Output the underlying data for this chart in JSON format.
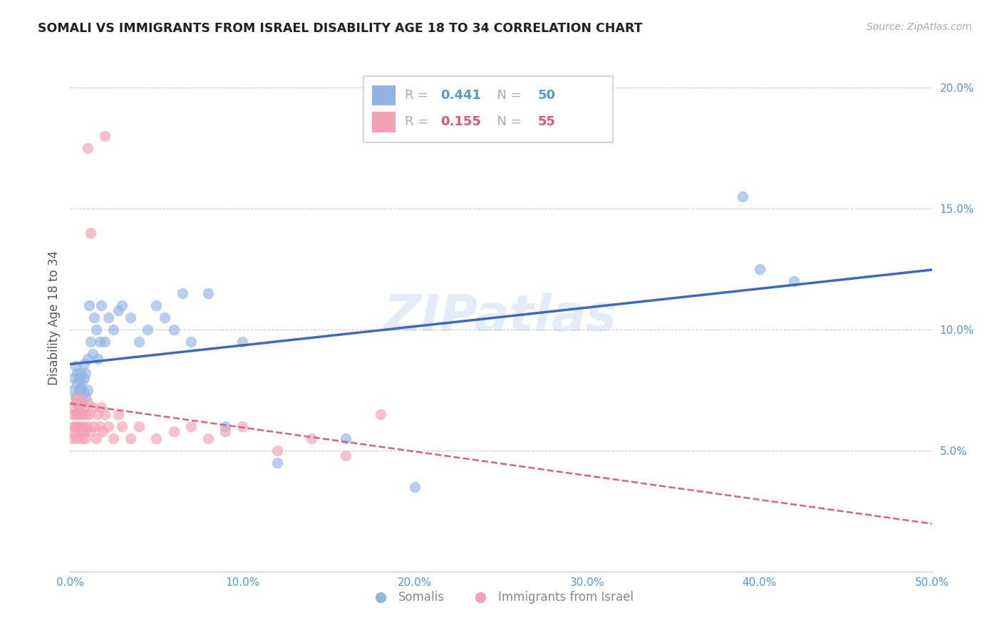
{
  "title": "SOMALI VS IMMIGRANTS FROM ISRAEL DISABILITY AGE 18 TO 34 CORRELATION CHART",
  "source": "Source: ZipAtlas.com",
  "ylabel": "Disability Age 18 to 34",
  "legend_label1": "Somalis",
  "legend_label2": "Immigrants from Israel",
  "R1": 0.441,
  "N1": 50,
  "R2": 0.155,
  "N2": 55,
  "color1": "#92b4e3",
  "color2": "#f4a0b5",
  "line_color1": "#3a6abf",
  "line_color2": "#d96080",
  "watermark": "ZIPatlas",
  "xlim": [
    0.0,
    0.5
  ],
  "ylim": [
    0.0,
    0.21
  ],
  "xticks": [
    0.0,
    0.1,
    0.2,
    0.3,
    0.4,
    0.5
  ],
  "yticks": [
    0.05,
    0.1,
    0.15,
    0.2
  ],
  "xtick_labels": [
    "0.0%",
    "10.0%",
    "20.0%",
    "30.0%",
    "40.0%",
    "50.0%"
  ],
  "ytick_labels": [
    "5.0%",
    "10.0%",
    "15.0%",
    "20.0%"
  ],
  "somali_x": [
    0.001,
    0.002,
    0.003,
    0.003,
    0.004,
    0.004,
    0.005,
    0.005,
    0.005,
    0.006,
    0.006,
    0.007,
    0.007,
    0.008,
    0.008,
    0.008,
    0.009,
    0.009,
    0.01,
    0.01,
    0.011,
    0.012,
    0.013,
    0.014,
    0.015,
    0.016,
    0.017,
    0.018,
    0.02,
    0.022,
    0.025,
    0.028,
    0.03,
    0.035,
    0.04,
    0.045,
    0.05,
    0.055,
    0.06,
    0.065,
    0.07,
    0.08,
    0.09,
    0.1,
    0.12,
    0.16,
    0.2,
    0.39,
    0.4,
    0.42
  ],
  "somali_y": [
    0.075,
    0.08,
    0.072,
    0.085,
    0.078,
    0.082,
    0.068,
    0.075,
    0.08,
    0.076,
    0.082,
    0.07,
    0.078,
    0.074,
    0.08,
    0.086,
    0.072,
    0.082,
    0.075,
    0.088,
    0.11,
    0.095,
    0.09,
    0.105,
    0.1,
    0.088,
    0.095,
    0.11,
    0.095,
    0.105,
    0.1,
    0.108,
    0.11,
    0.105,
    0.095,
    0.1,
    0.11,
    0.105,
    0.1,
    0.115,
    0.095,
    0.115,
    0.06,
    0.095,
    0.045,
    0.055,
    0.035,
    0.155,
    0.125,
    0.12
  ],
  "israel_x": [
    0.001,
    0.001,
    0.002,
    0.002,
    0.002,
    0.003,
    0.003,
    0.003,
    0.004,
    0.004,
    0.004,
    0.005,
    0.005,
    0.005,
    0.006,
    0.006,
    0.006,
    0.007,
    0.007,
    0.008,
    0.008,
    0.008,
    0.009,
    0.009,
    0.01,
    0.01,
    0.011,
    0.012,
    0.013,
    0.014,
    0.015,
    0.016,
    0.017,
    0.018,
    0.019,
    0.02,
    0.022,
    0.025,
    0.028,
    0.03,
    0.035,
    0.04,
    0.05,
    0.06,
    0.07,
    0.08,
    0.09,
    0.1,
    0.12,
    0.14,
    0.16,
    0.01,
    0.012,
    0.18,
    0.02
  ],
  "israel_y": [
    0.065,
    0.055,
    0.06,
    0.068,
    0.058,
    0.065,
    0.07,
    0.06,
    0.055,
    0.065,
    0.072,
    0.06,
    0.068,
    0.058,
    0.065,
    0.06,
    0.07,
    0.055,
    0.065,
    0.06,
    0.068,
    0.058,
    0.065,
    0.055,
    0.06,
    0.07,
    0.065,
    0.058,
    0.068,
    0.06,
    0.055,
    0.065,
    0.06,
    0.068,
    0.058,
    0.065,
    0.06,
    0.055,
    0.065,
    0.06,
    0.055,
    0.06,
    0.055,
    0.058,
    0.06,
    0.055,
    0.058,
    0.06,
    0.05,
    0.055,
    0.048,
    0.175,
    0.14,
    0.065,
    0.18
  ]
}
